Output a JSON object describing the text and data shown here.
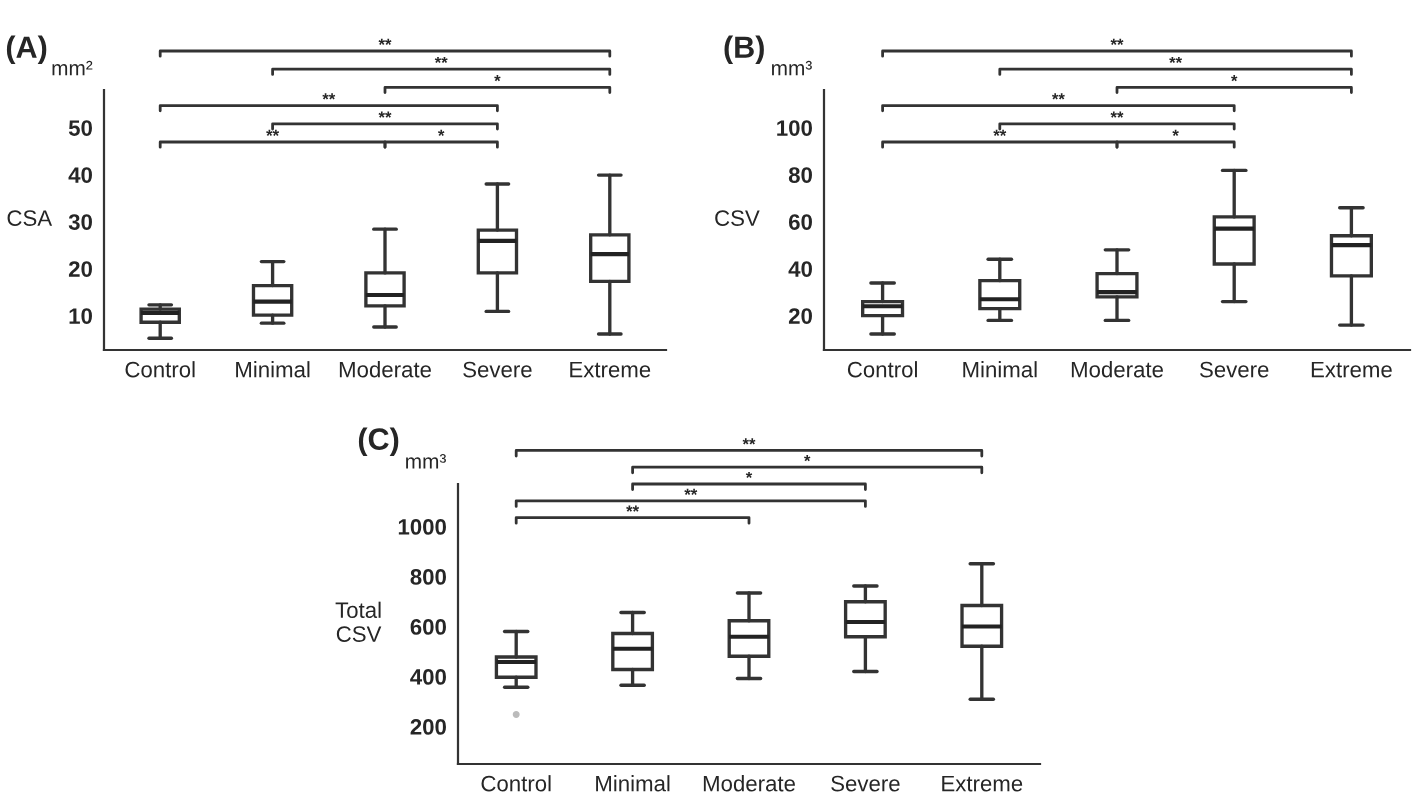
{
  "chart_data": [
    {
      "type": "box",
      "title": "(A)",
      "subtitle": "mm²",
      "ylabel": "CSA",
      "categories": [
        "Control",
        "Minimal",
        "Moderate",
        "Severe",
        "Extreme"
      ],
      "boxes": [
        {
          "low": 5.2,
          "q1": 8.6,
          "median": 10.6,
          "q3": 11.4,
          "high": 12.3
        },
        {
          "low": 8.4,
          "q1": 10.1,
          "median": 13.0,
          "q3": 16.4,
          "high": 21.5
        },
        {
          "low": 7.6,
          "q1": 12.1,
          "median": 14.4,
          "q3": 19.1,
          "high": 28.4
        },
        {
          "low": 10.9,
          "q1": 19.1,
          "median": 25.9,
          "q3": 28.2,
          "high": 38.0
        },
        {
          "low": 6.1,
          "q1": 17.3,
          "median": 23.1,
          "q3": 27.2,
          "high": 39.9
        }
      ],
      "ylim": [
        2.7,
        58
      ],
      "yticks": [
        10,
        20,
        30,
        40,
        50
      ],
      "grid": false,
      "annotations": [
        "**",
        "**",
        "*",
        "**",
        "**",
        "**",
        "*"
      ]
    },
    {
      "type": "box",
      "title": "(B)",
      "subtitle": "mm³",
      "ylabel": "CSV",
      "categories": [
        "Control",
        "Minimal",
        "Moderate",
        "Severe",
        "Extreme"
      ],
      "boxes": [
        {
          "low": 12.2,
          "q1": 20,
          "median": 24,
          "q3": 26,
          "high": 33.9
        },
        {
          "low": 18,
          "q1": 23,
          "median": 27,
          "q3": 34.9,
          "high": 44
        },
        {
          "low": 18,
          "q1": 28,
          "median": 30,
          "q3": 37.9,
          "high": 48
        },
        {
          "low": 26,
          "q1": 42,
          "median": 57,
          "q3": 62,
          "high": 81.8
        },
        {
          "low": 16,
          "q1": 36.9,
          "median": 50,
          "q3": 54,
          "high": 65.9
        }
      ],
      "ylim": [
        5.4,
        116
      ],
      "yticks": [
        20,
        40,
        60,
        80,
        100
      ],
      "grid": false,
      "annotations": [
        "**",
        "**",
        "*",
        "**",
        "**",
        "**",
        "*"
      ]
    },
    {
      "type": "box",
      "title": "(C)",
      "subtitle": "mm³",
      "ylabel": "Total\nCSV",
      "categories": [
        "Control",
        "Minimal",
        "Moderate",
        "Severe",
        "Extreme"
      ],
      "boxes": [
        {
          "low": 357,
          "q1": 397,
          "median": 458,
          "q3": 478,
          "high": 580,
          "outliers": [
            248
          ]
        },
        {
          "low": 365,
          "q1": 428,
          "median": 511,
          "q3": 572,
          "high": 656
        },
        {
          "low": 392,
          "q1": 481,
          "median": 559,
          "q3": 623,
          "high": 734
        },
        {
          "low": 420,
          "q1": 559,
          "median": 618,
          "q3": 699,
          "high": 762
        },
        {
          "low": 309,
          "q1": 521,
          "median": 600,
          "q3": 684,
          "high": 851
        }
      ],
      "ylim": [
        50,
        1170
      ],
      "yticks": [
        200,
        400,
        600,
        800,
        1000
      ],
      "grid": false,
      "annotations": [
        "**",
        "*",
        "*",
        "**",
        "**"
      ]
    }
  ]
}
